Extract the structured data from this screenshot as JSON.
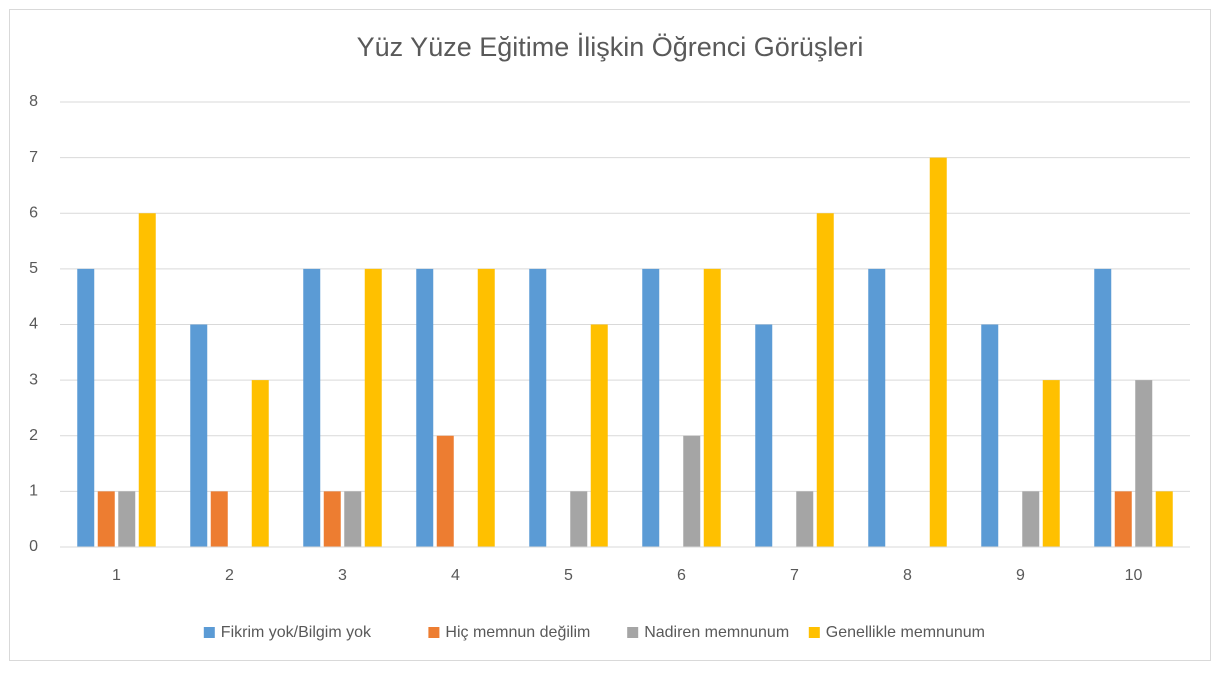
{
  "chart_data": {
    "type": "bar",
    "title": "Yüz Yüze Eğitime İlişkin Öğrenci Görüşleri",
    "categories": [
      "1",
      "2",
      "3",
      "4",
      "5",
      "6",
      "7",
      "8",
      "9",
      "10"
    ],
    "series": [
      {
        "name": "Fikrim yok/Bilgim yok",
        "color": "#5b9bd5",
        "values": [
          5,
          4,
          5,
          5,
          5,
          5,
          4,
          5,
          4,
          5
        ]
      },
      {
        "name": "Hiç memnun değilim",
        "color": "#ed7d31",
        "values": [
          1,
          1,
          1,
          2,
          0,
          0,
          0,
          0,
          0,
          1
        ]
      },
      {
        "name": "Nadiren memnunum",
        "color": "#a5a5a5",
        "values": [
          1,
          0,
          1,
          0,
          1,
          2,
          1,
          0,
          1,
          3
        ]
      },
      {
        "name": "Genellikle memnunum",
        "color": "#ffc000",
        "values": [
          6,
          3,
          5,
          5,
          4,
          5,
          6,
          7,
          3,
          1
        ]
      }
    ],
    "ylim": [
      0,
      8
    ],
    "yticks": [
      0,
      1,
      2,
      3,
      4,
      5,
      6,
      7,
      8
    ],
    "grid": true,
    "legend": "bottom"
  }
}
